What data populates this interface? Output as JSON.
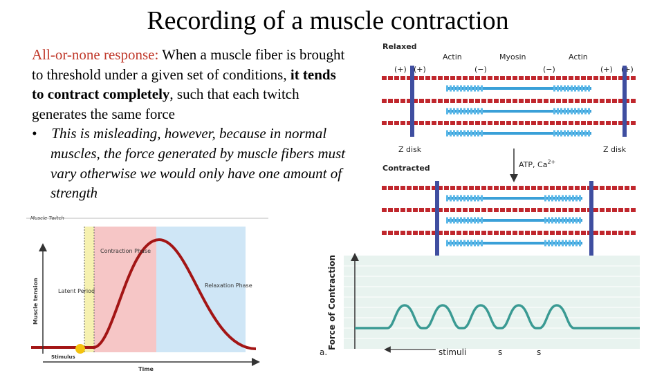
{
  "title": "Recording of a muscle contraction",
  "body": {
    "paragraph": [
      "All-or-none response:",
      "When a muscle fiber is brought to threshold under a given set of conditions,",
      "it tends to contract completely",
      ", such that each twitch generates the same force"
    ],
    "bullet": "This is misleading, however, because in normal muscles, the force generated by muscle fibers must vary otherwise we would only have one amount of strength"
  },
  "twitch_figure": {
    "title": "Muscle Twitch",
    "latent": "Latent Period",
    "contraction": "Contraction Phase",
    "relaxation": "Relaxation Phase",
    "y_label": "Muscle tension",
    "x_label": "Time",
    "stimulus": "Stimulus"
  },
  "sarcomere_figure": {
    "relaxed": "Relaxed",
    "contracted": "Contracted",
    "filaments": [
      "Actin",
      "Myosin",
      "Actin"
    ],
    "charges": [
      "(+)",
      "(+)",
      "(−)",
      "(−)",
      "(+)",
      "(+)"
    ],
    "z_disks": [
      "Z disk",
      "Z disk"
    ],
    "trigger": "ATP, Ca",
    "trigger_sup": "2+"
  },
  "force_figure": {
    "y_label": "Force of Contraction",
    "x_label": "stimuli",
    "marks": [
      "s",
      "s"
    ],
    "panel": "a."
  }
}
